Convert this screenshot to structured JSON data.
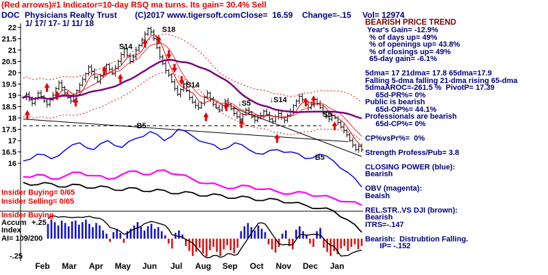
{
  "header": {
    "signal_line": "(Red arrows)#1 Indicator=10-day RSQ ma turns. Its gain= 30.4% Sell",
    "ticker": "DOC",
    "company": "Physicians Realty Trust",
    "copyright": "(C)2017 www.tigersoft.com",
    "close_label": "Close=  16.59",
    "change_label": "Change=-.15",
    "volume_label": "Vol= 12974",
    "date_range": "1/ 17/ 17- 1/ 11/ 18"
  },
  "side_panel": {
    "title": "BEARISH PRICE TREND",
    "lines": [
      " Year's Gain= -12.9%",
      "  % of days up= 49%",
      "  % of openings up= 43.8%",
      "  % of closings up= 49%",
      "  65-day gain= -6.1%",
      "",
      "5dma= 17 21dma= 17.8 65dma=17.9",
      "Falling 5-dma falling 21-dma rising 65-dma",
      "5dmaAROC=-261.5 %  PivotP= 17.39",
      "     65d-PR%= 0%",
      "Public is bearish",
      "     65d-OP%= 44.1%",
      "Professionals are bearish",
      "     65d-CP%= 0%",
      "",
      "CP%vsPr%=  0%",
      "",
      "Strength Profess/Pub= 3.8",
      "",
      "CLOSING POWER (blue):",
      "Bearish",
      "",
      "OBV (magenta):",
      "Beaish",
      "",
      "REL.STR..VS DJI (brown):",
      "Bearish",
      "ITRS=-.147",
      "",
      "Bearish:  Distrubtion Falling.",
      "       IP= -.152"
    ]
  },
  "left_labels": {
    "insider_buying": "Insider Buying= 0/65",
    "insider_selling": "Insider Selling= 0/65",
    "insider_buying_2": "Insider Buying",
    "accum": "Accum",
    "plus_level": "+.25",
    "index": "Index",
    "ai": "AI= 109/200",
    "minus_level": "-.25"
  },
  "chart_data": {
    "type": "candlestick",
    "title": "DOC Physicians Realty Trust daily, 1/17/17 - 1/11/18",
    "ylim": [
      16,
      22
    ],
    "price_axis": [
      22,
      21.5,
      21,
      20.5,
      20,
      19.5,
      19,
      18.5,
      18,
      17.5,
      17,
      16.5,
      16
    ],
    "months": [
      "Feb",
      "Mar",
      "Apr",
      "May",
      "Jun",
      "Jul",
      "Aug",
      "Sep",
      "Oct",
      "Nov",
      "Dec",
      "Jan"
    ],
    "close": [
      18.9,
      19.05,
      18.8,
      18.65,
      18.85,
      19.1,
      18.95,
      18.75,
      18.6,
      18.8,
      19.0,
      19.3,
      19.55,
      19.35,
      19.1,
      18.9,
      18.75,
      18.95,
      19.2,
      19.45,
      19.7,
      19.95,
      20.25,
      20.05,
      19.8,
      19.6,
      19.85,
      20.1,
      20.35,
      20.15,
      19.95,
      20.2,
      20.5,
      20.8,
      21.05,
      20.75,
      20.5,
      20.7,
      21.0,
      21.2,
      21.45,
      21.7,
      21.95,
      21.8,
      21.5,
      21.1,
      20.7,
      20.4,
      20.1,
      19.9,
      19.6,
      19.3,
      19.05,
      19.25,
      19.5,
      19.2,
      18.9,
      18.7,
      18.55,
      18.45,
      18.65,
      18.9,
      19.1,
      18.85,
      18.6,
      18.45,
      18.35,
      18.55,
      18.75,
      18.6,
      18.4,
      18.2,
      18.05,
      17.95,
      18.15,
      18.35,
      18.25,
      18.05,
      17.9,
      18.0,
      18.1,
      18.3,
      18.15,
      17.95,
      17.85,
      18.05,
      18.2,
      18.0,
      17.9,
      18.1,
      18.3,
      18.55,
      18.75,
      18.95,
      18.8,
      18.6,
      18.45,
      18.6,
      18.8,
      18.65,
      18.45,
      18.25,
      18.05,
      17.95,
      18.1,
      18.0,
      17.8,
      17.6,
      17.45,
      17.25,
      17.0,
      16.8,
      16.6,
      16.75,
      16.59
    ],
    "series": [
      {
        "name": "Closing Power",
        "color": "#0000ee",
        "values": [
          16.1,
          16.4,
          16.2,
          16.6,
          16.9,
          16.6,
          17.0,
          16.7,
          17.1,
          17.4,
          17.0,
          17.5,
          17.2,
          16.9,
          16.6,
          16.9,
          16.6,
          16.4,
          16.6,
          16.5,
          16.2,
          16.4,
          16.1,
          15.6,
          14.95
        ]
      },
      {
        "name": "OBV",
        "color": "#ff00ff",
        "values": [
          15.4,
          15.5,
          15.3,
          15.45,
          15.6,
          15.45,
          15.3,
          15.5,
          15.65,
          15.5,
          15.7,
          15.5,
          15.3,
          15.1,
          15.0,
          14.9,
          15.0,
          14.85,
          14.75,
          14.65,
          14.7,
          14.55,
          14.45,
          14.3,
          14.15
        ]
      },
      {
        "name": "Rel Str vs DJI",
        "color": "#000000",
        "values": [
          15.15,
          15.05,
          15.1,
          14.95,
          15.05,
          14.9,
          14.95,
          14.8,
          14.9,
          14.75,
          14.8,
          14.65,
          14.7,
          14.55,
          14.6,
          14.45,
          14.5,
          14.35,
          14.4,
          14.25,
          14.15,
          14.0,
          13.9,
          13.5,
          12.95
        ]
      }
    ],
    "accum_index": {
      "range": [
        -0.25,
        0.25
      ],
      "values": [
        0.18,
        0.23,
        0.2,
        0.16,
        0.22,
        0.19,
        0.15,
        0.21,
        0.22,
        0.17,
        0.2,
        0.23,
        0.18,
        0.14,
        0.19,
        0.16,
        0.1,
        0.06,
        -0.04,
        0.08,
        0.12,
        0.07,
        -0.05,
        0.09,
        0.12,
        0.16,
        0.2,
        0.14,
        0.1,
        0.15,
        0.18,
        0.12,
        0.14,
        0.09,
        0.04,
        -0.06,
        -0.12,
        0.07,
        0.1,
        0.05,
        -0.09,
        -0.15,
        -0.21,
        -0.16,
        -0.11,
        -0.18,
        -0.22,
        -0.14,
        -0.1,
        -0.16,
        -0.21,
        -0.13,
        -0.08,
        -0.14,
        -0.18,
        -0.11,
        0.09,
        0.15,
        0.19,
        0.14,
        0.1,
        0.16,
        0.12,
        0.08,
        -0.07,
        -0.13,
        -0.17,
        -0.1,
        0.06,
        0.1,
        -0.09,
        -0.13,
        0.11,
        0.15,
        0.09,
        0.05,
        -0.06,
        -0.1,
        0.09,
        0.13,
        -0.11,
        -0.16,
        -0.21,
        -0.15,
        -0.19,
        -0.12,
        -0.09,
        -0.15,
        -0.1,
        -0.07,
        -0.13,
        -0.09
      ]
    },
    "signals": [
      {
        "label": "S18",
        "x": 0.41,
        "p": 21.8
      },
      {
        "label": "S14",
        "x": 0.283,
        "p": 21.05
      },
      {
        "label": "↓S14",
        "x": 0.47,
        "p": 19.35
      },
      {
        "label": "↓S5",
        "x": 0.634,
        "p": 18.55
      },
      {
        "label": "↓S14",
        "x": 0.728,
        "p": 18.7
      },
      {
        "label": "S5",
        "x": 0.885,
        "p": 18.05
      },
      {
        "label": "B5",
        "x": 0.335,
        "p": 17.55
      },
      {
        "label": "B5",
        "x": 0.862,
        "p": 16.15
      }
    ],
    "arrows": [
      {
        "x": 0.012,
        "p": 18.35,
        "dir": "up"
      },
      {
        "x": 0.07,
        "p": 19.55,
        "dir": "up"
      },
      {
        "x": 0.1,
        "p": 19.2,
        "dir": "up"
      },
      {
        "x": 0.155,
        "p": 18.9,
        "dir": "up"
      },
      {
        "x": 0.24,
        "p": 20.3,
        "dir": "up"
      },
      {
        "x": 0.287,
        "p": 19.95,
        "dir": "up"
      },
      {
        "x": 0.36,
        "p": 21.5,
        "dir": "up"
      },
      {
        "x": 0.4,
        "p": 21.65,
        "dir": "up"
      },
      {
        "x": 0.43,
        "p": 20.6,
        "dir": "down"
      },
      {
        "x": 0.447,
        "p": 20.0,
        "dir": "down"
      },
      {
        "x": 0.468,
        "p": 19.45,
        "dir": "down"
      },
      {
        "x": 0.54,
        "p": 18.25,
        "dir": "up"
      },
      {
        "x": 0.6,
        "p": 18.7,
        "dir": "up"
      },
      {
        "x": 0.645,
        "p": 17.95,
        "dir": "up"
      },
      {
        "x": 0.75,
        "p": 17.3,
        "dir": "up"
      },
      {
        "x": 0.835,
        "p": 18.9,
        "dir": "up"
      },
      {
        "x": 0.858,
        "p": 19.0,
        "dir": "up"
      },
      {
        "x": 0.92,
        "p": 17.85,
        "dir": "up"
      }
    ],
    "lines": [
      {
        "style": "solid",
        "x1": 0.0,
        "p1": 17.95,
        "x2": 0.96,
        "p2": 16.95
      },
      {
        "style": "solid",
        "x1": 0.62,
        "p1": 18.45,
        "x2": 1.0,
        "p2": 16.3
      },
      {
        "style": "dashed",
        "x1": 0.0,
        "p1": 17.65,
        "x2": 0.88,
        "p2": 17.65
      }
    ]
  }
}
